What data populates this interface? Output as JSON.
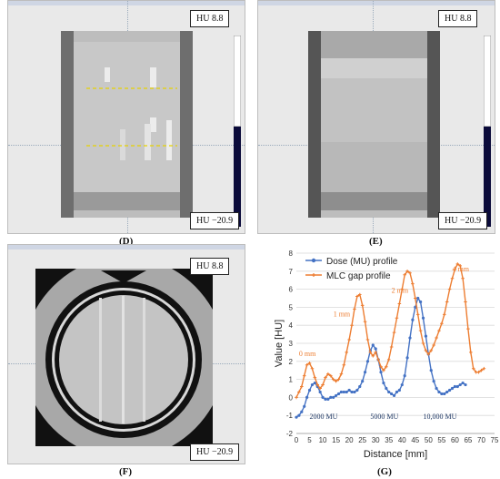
{
  "panels": {
    "D": {
      "caption": "(D)",
      "hu_top": "HU 8.8",
      "hu_bottom": "HU −20.9"
    },
    "E": {
      "caption": "(E)",
      "hu_top": "HU 8.8",
      "hu_bottom": "HU −20.9"
    },
    "F": {
      "caption": "(F)",
      "hu_top": "HU 8.8",
      "hu_bottom": "HU −20.9"
    }
  },
  "chart_caption": "(G)",
  "chart_data": {
    "type": "line",
    "xlabel": "Distance [mm]",
    "ylabel": "Value [HU]",
    "xlim": [
      0,
      75
    ],
    "ylim": [
      -2,
      8
    ],
    "xticks": [
      0,
      5,
      10,
      15,
      20,
      25,
      30,
      35,
      40,
      45,
      50,
      55,
      60,
      65,
      70,
      75
    ],
    "yticks": [
      -2,
      -1,
      0,
      1,
      2,
      3,
      4,
      5,
      6,
      7,
      8
    ],
    "legend_position": "top-left",
    "series": [
      {
        "name": "Dose (MU) profile",
        "color": "#4472c4",
        "marker": "dot",
        "x": [
          0,
          1,
          2,
          3,
          4,
          5,
          6,
          7,
          8,
          9,
          10,
          11,
          12,
          13,
          14,
          15,
          16,
          17,
          18,
          19,
          20,
          21,
          22,
          23,
          24,
          25,
          26,
          27,
          28,
          29,
          30,
          31,
          32,
          33,
          34,
          35,
          36,
          37,
          38,
          39,
          40,
          41,
          42,
          43,
          44,
          45,
          46,
          47,
          48,
          49,
          50,
          51,
          52,
          53,
          54,
          55,
          56,
          57,
          58,
          59,
          60,
          61,
          62,
          63,
          64
        ],
        "values": [
          -1.1,
          -1.0,
          -0.8,
          -0.5,
          0.0,
          0.4,
          0.7,
          0.8,
          0.6,
          0.3,
          0.0,
          -0.1,
          -0.1,
          0.0,
          0.0,
          0.1,
          0.2,
          0.3,
          0.3,
          0.3,
          0.4,
          0.3,
          0.3,
          0.4,
          0.6,
          0.9,
          1.4,
          2.0,
          2.6,
          2.9,
          2.7,
          2.1,
          1.4,
          0.8,
          0.5,
          0.3,
          0.2,
          0.1,
          0.3,
          0.4,
          0.7,
          1.2,
          2.2,
          3.3,
          4.3,
          5.0,
          5.5,
          5.3,
          4.4,
          3.4,
          2.4,
          1.5,
          0.9,
          0.5,
          0.3,
          0.2,
          0.2,
          0.3,
          0.4,
          0.5,
          0.6,
          0.6,
          0.7,
          0.8,
          0.7
        ]
      },
      {
        "name": "MLC gap profile",
        "color": "#ed7d31",
        "marker": "plus",
        "x": [
          0,
          1,
          2,
          3,
          4,
          5,
          6,
          7,
          8,
          9,
          10,
          11,
          12,
          13,
          14,
          15,
          16,
          17,
          18,
          19,
          20,
          21,
          22,
          23,
          24,
          25,
          26,
          27,
          28,
          29,
          30,
          31,
          32,
          33,
          34,
          35,
          36,
          37,
          38,
          39,
          40,
          41,
          42,
          43,
          44,
          45,
          46,
          47,
          48,
          49,
          50,
          51,
          52,
          53,
          54,
          55,
          56,
          57,
          58,
          59,
          60,
          61,
          62,
          63,
          64,
          65,
          66,
          67,
          68,
          69,
          70,
          71
        ],
        "values": [
          0.0,
          0.3,
          0.6,
          1.2,
          1.8,
          1.9,
          1.6,
          1.1,
          0.7,
          0.5,
          0.7,
          1.1,
          1.3,
          1.2,
          1.0,
          0.9,
          1.0,
          1.3,
          1.8,
          2.5,
          3.2,
          4.0,
          4.9,
          5.6,
          5.7,
          5.1,
          4.2,
          3.2,
          2.5,
          2.3,
          2.5,
          2.1,
          1.7,
          1.5,
          1.7,
          2.1,
          2.8,
          3.6,
          4.4,
          5.2,
          6.0,
          6.8,
          7.0,
          6.9,
          6.3,
          5.5,
          4.6,
          3.7,
          3.0,
          2.6,
          2.4,
          2.6,
          2.9,
          3.3,
          3.7,
          4.1,
          4.6,
          5.3,
          6.0,
          6.6,
          7.1,
          7.4,
          7.3,
          6.6,
          5.3,
          3.8,
          2.5,
          1.6,
          1.4,
          1.4,
          1.5,
          1.6
        ]
      }
    ],
    "annotations": [
      {
        "text": "0 mm",
        "x": 1,
        "y": 2.3,
        "color": "#ed7d31"
      },
      {
        "text": "1 mm",
        "x": 14,
        "y": 4.5,
        "color": "#ed7d31"
      },
      {
        "text": "2 mm",
        "x": 36,
        "y": 5.8,
        "color": "#ed7d31"
      },
      {
        "text": "4 mm",
        "x": 59,
        "y": 7.0,
        "color": "#ed7d31"
      },
      {
        "text": "2000 MU",
        "x": 5,
        "y": -1.2,
        "color": "#1f3864"
      },
      {
        "text": "5000 MU",
        "x": 28,
        "y": -1.2,
        "color": "#1f3864"
      },
      {
        "text": "10,000 MU",
        "x": 48,
        "y": -1.2,
        "color": "#1f3864"
      }
    ]
  }
}
